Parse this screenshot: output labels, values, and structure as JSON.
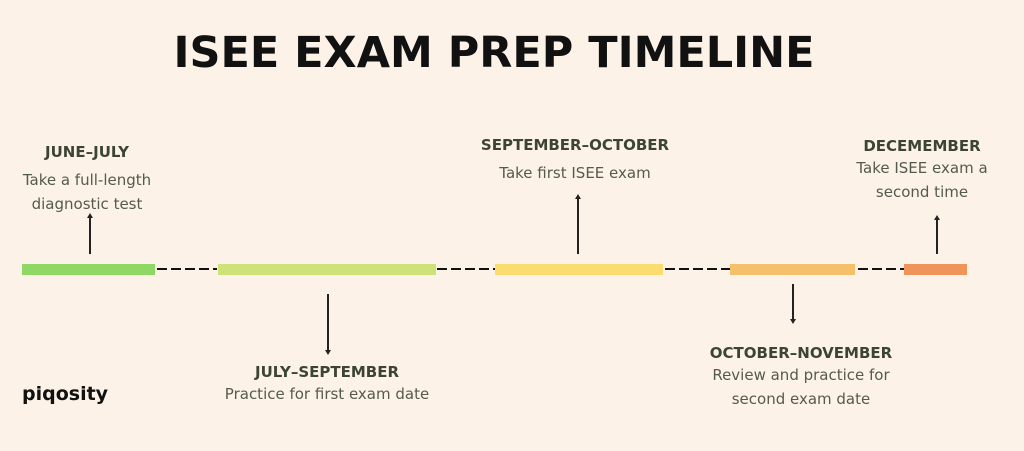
{
  "title": "ISEE EXAM PREP TIMELINE",
  "logo": "piqosity",
  "phases": [
    {
      "period": "JUNE–JULY",
      "lines": [
        "Take a full-length",
        "diagnostic test"
      ],
      "color": "#8fd866",
      "arrow": "up"
    },
    {
      "period": "JULY–SEPTEMBER",
      "lines": [
        "Practice for first exam date"
      ],
      "color": "#cfe27a",
      "arrow": "down"
    },
    {
      "period": "SEPTEMBER–OCTOBER",
      "lines": [
        "Take first ISEE exam"
      ],
      "color": "#fadd6e",
      "arrow": "up"
    },
    {
      "period": "OCTOBER–NOVEMBER",
      "lines": [
        "Review and practice for",
        "second exam date"
      ],
      "color": "#f4c06a",
      "arrow": "down"
    },
    {
      "period": "DECEMEMBER",
      "lines": [
        "Take ISEE exam a",
        "second time"
      ],
      "color": "#ef955c",
      "arrow": "up"
    }
  ]
}
